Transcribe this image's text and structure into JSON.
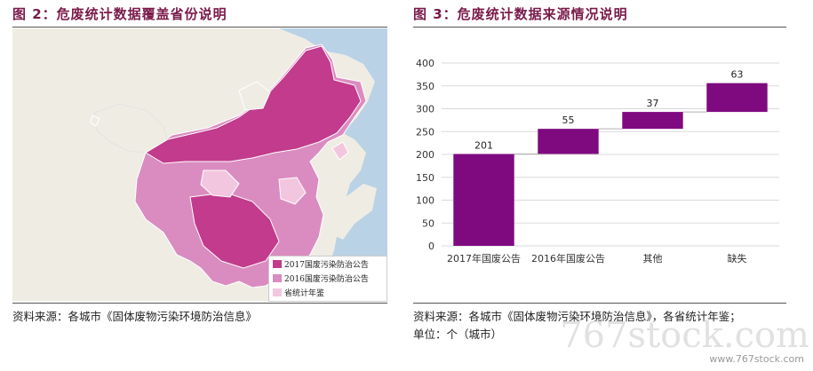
{
  "left_figure": {
    "title": "图 2：危废统计数据覆盖省份说明",
    "source": "资料来源：各城市《固体废物污染环境防治信息》",
    "legend": [
      {
        "label": "2017国废污染防治公告",
        "color": "#c23b8c"
      },
      {
        "label": "2016国废污染防治公告",
        "color": "#da8cc0"
      },
      {
        "label": "省统计年鉴",
        "color": "#f3c6df"
      }
    ],
    "colors": {
      "sea": "#b9d2e6",
      "land": "#efece4",
      "border": "#ffffff"
    }
  },
  "right_figure": {
    "title": "图 3：危废统计数据来源情况说明",
    "source_line1": "资料来源：各城市《固体废物污染环境防治信息》，各省统计年鉴；",
    "source_line2": "单位：个（城市）"
  },
  "watermark": {
    "main": "767stock.com",
    "sub": "www.767stock.com"
  },
  "chart_data": {
    "type": "bar",
    "subtype": "waterfall",
    "categories": [
      "2017年国废公告",
      "2016年国废公告",
      "其他",
      "缺失"
    ],
    "values": [
      201,
      55,
      37,
      63
    ],
    "bases": [
      0,
      201,
      256,
      293
    ],
    "ylim": [
      0,
      400
    ],
    "yticks": [
      0,
      50,
      100,
      150,
      200,
      250,
      300,
      350,
      400
    ],
    "grid": true,
    "bar_color": "#7f0a80",
    "connector_color": "#b0b0b0"
  }
}
